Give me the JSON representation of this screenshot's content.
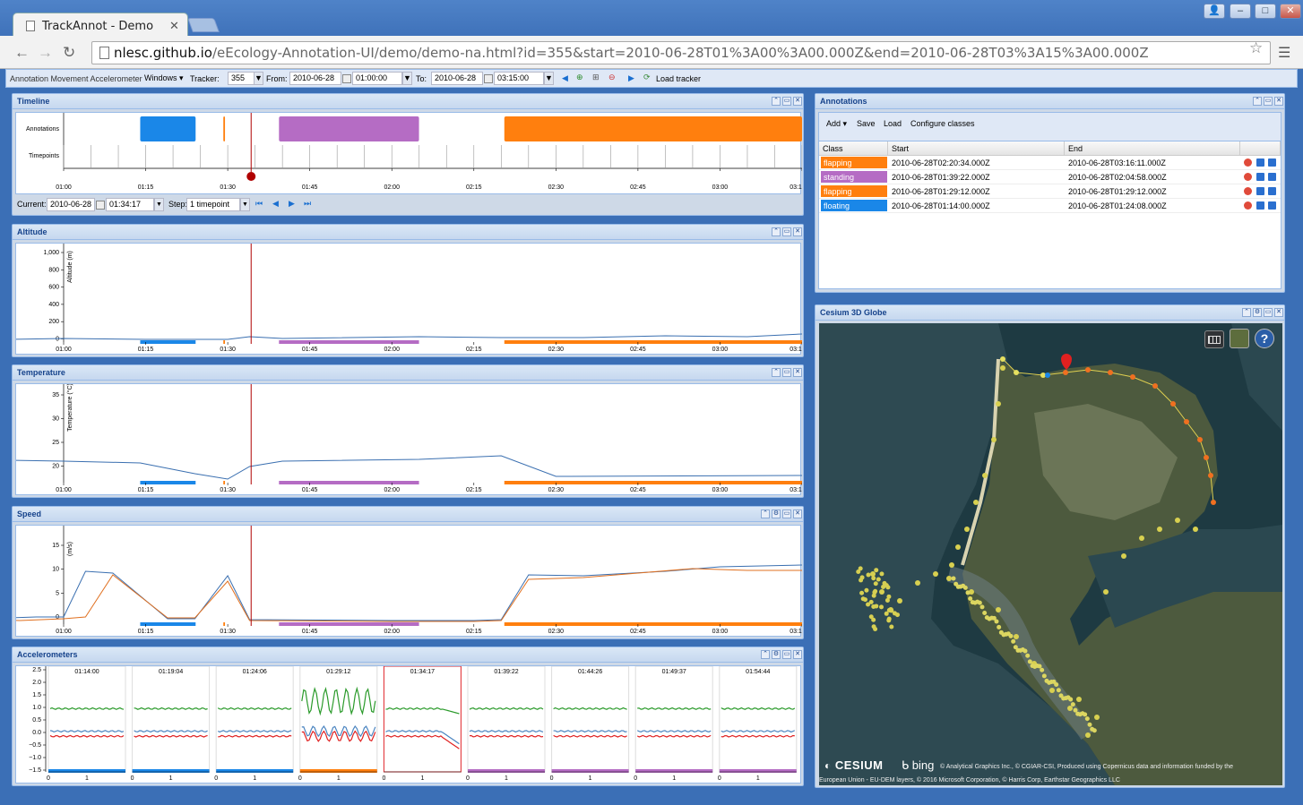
{
  "browser": {
    "tab_title": "TrackAnnot - Demo",
    "url_host": "nlesc.github.io",
    "url_path": "/eEcology-Annotation-UI/demo/demo-na.html?id=355&start=2010-06-28T01%3A00%3A00.000Z&end=2010-06-28T03%3A15%3A00.000Z"
  },
  "apptoolbar": {
    "brand": "Annotation Movement Accelerometer",
    "windows": "Windows",
    "tracker_label": "Tracker:",
    "tracker": "355",
    "from_label": "From:",
    "from_date": "2010-06-28",
    "from_time": "01:00:00",
    "to_label": "To:",
    "to_date": "2010-06-28",
    "to_time": "03:15:00",
    "load": "Load tracker"
  },
  "timeline": {
    "title": "Timeline",
    "row_annotations": "Annotations",
    "row_timepoints": "Timepoints",
    "current_label": "Current:",
    "current_date": "2010-06-28",
    "current_time": "01:34:17",
    "step_label": "Step:",
    "step": "1 timepoint"
  },
  "time_ticks": [
    "01:00",
    "01:15",
    "01:30",
    "01:45",
    "02:00",
    "02:15",
    "02:30",
    "02:45",
    "03:00",
    "03:1"
  ],
  "altitude": {
    "title": "Altitude",
    "ylabel": "Altitude (m)",
    "yticks": [
      "1,000",
      "800",
      "600",
      "400",
      "200",
      "0"
    ]
  },
  "temperature": {
    "title": "Temperature",
    "ylabel": "Temperature (°C)",
    "yticks": [
      "35",
      "30",
      "25",
      "20"
    ]
  },
  "speed": {
    "title": "Speed",
    "ylabel": "(m/s)",
    "yticks": [
      "15",
      "10",
      "5",
      "0"
    ]
  },
  "accelerometers": {
    "title": "Accelerometers",
    "yticks": [
      "2.5",
      "2.0",
      "1.5",
      "1.0",
      "0.5",
      "0.0",
      "−0.5",
      "−1.0",
      "−1.5"
    ],
    "xticks": [
      "0",
      "1"
    ],
    "times": [
      "01:14:00",
      "01:19:04",
      "01:24:06",
      "01:29:12",
      "01:34:17",
      "01:39:22",
      "01:44:26",
      "01:49:37",
      "01:54:44"
    ]
  },
  "annotations": {
    "title": "Annotations",
    "add": "Add",
    "save": "Save",
    "load": "Load",
    "configure": "Configure classes",
    "col_class": "Class",
    "col_start": "Start",
    "col_end": "End",
    "rows": [
      {
        "class": "flapping",
        "color": "#ff7f0e",
        "start": "2010-06-28T02:20:34.000Z",
        "end": "2010-06-28T03:16:11.000Z"
      },
      {
        "class": "standing",
        "color": "#b56cc4",
        "start": "2010-06-28T01:39:22.000Z",
        "end": "2010-06-28T02:04:58.000Z"
      },
      {
        "class": "flapping",
        "color": "#ff7f0e",
        "start": "2010-06-28T01:29:12.000Z",
        "end": "2010-06-28T01:29:12.000Z"
      },
      {
        "class": "floating",
        "color": "#1a87e8",
        "start": "2010-06-28T01:14:00.000Z",
        "end": "2010-06-28T01:24:08.000Z"
      }
    ]
  },
  "globe": {
    "title": "Cesium 3D Globe",
    "cesium": "CESIUM",
    "bing": "bing",
    "credits1": "© Analytical Graphics Inc., © CGIAR-CSI, Produced using Copernicus data and information funded by the",
    "credits2": "European Union - EU-DEM layers, © 2016 Microsoft Corporation, © Harris Corp, Earthstar Geographics LLC",
    "help": "?"
  },
  "colors": {
    "floating": "#1a87e8",
    "standing": "#b56cc4",
    "flapping": "#ff7f0e",
    "cursor": "#b00000"
  }
}
